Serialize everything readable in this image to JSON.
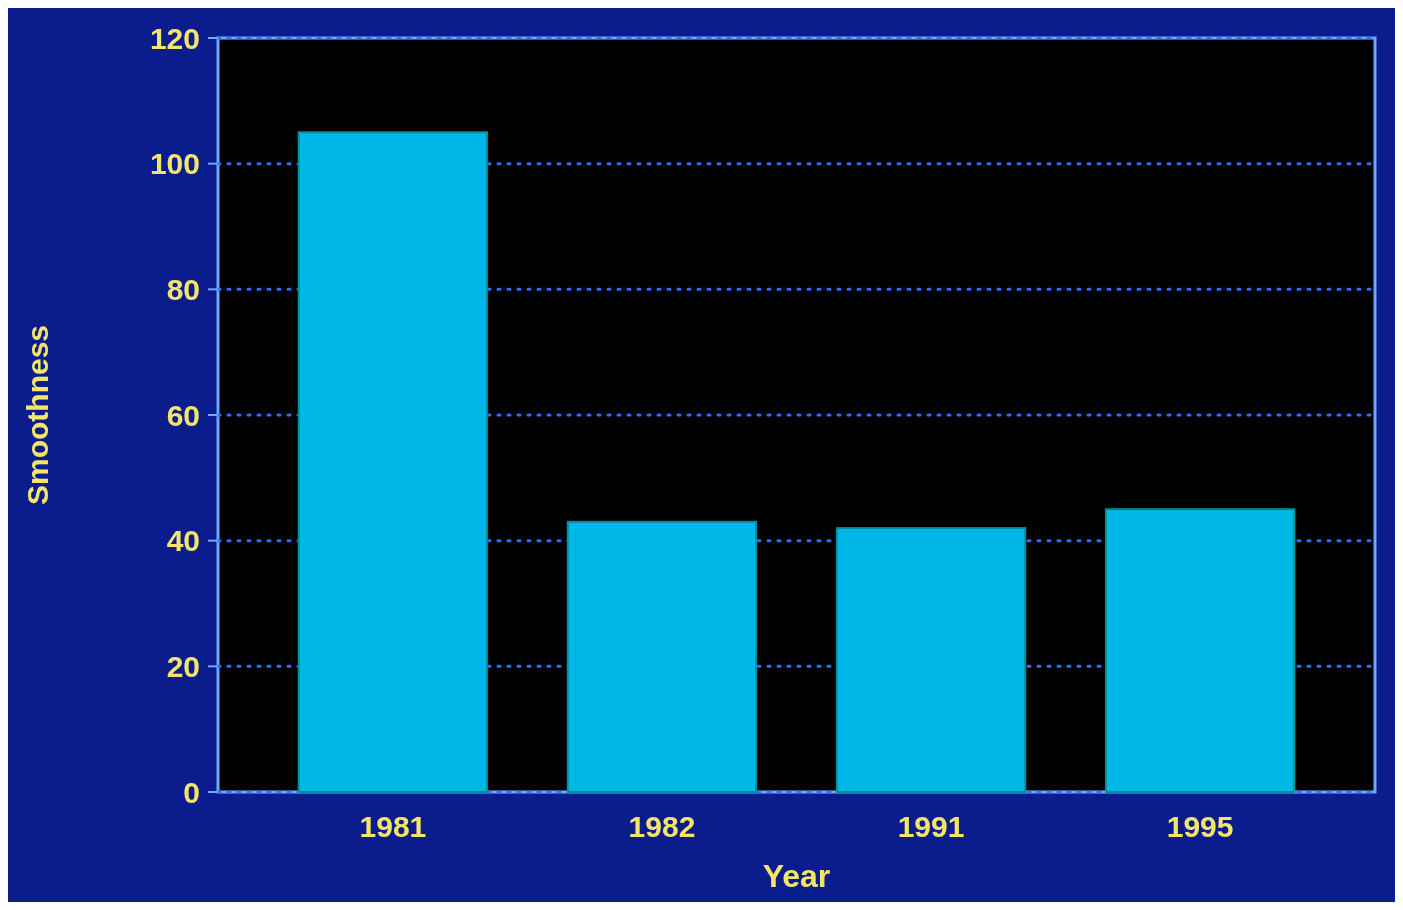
{
  "chart_data": {
    "type": "bar",
    "xlabel": "Year",
    "ylabel": "Smoothness",
    "categories": [
      "1981",
      "1982",
      "1991",
      "1995"
    ],
    "values": [
      105,
      43,
      42,
      45
    ],
    "color": "#00b8e8",
    "ylim": [
      0,
      120
    ],
    "yticks": [
      0,
      20,
      40,
      60,
      80,
      100,
      120
    ],
    "grid": "y"
  }
}
